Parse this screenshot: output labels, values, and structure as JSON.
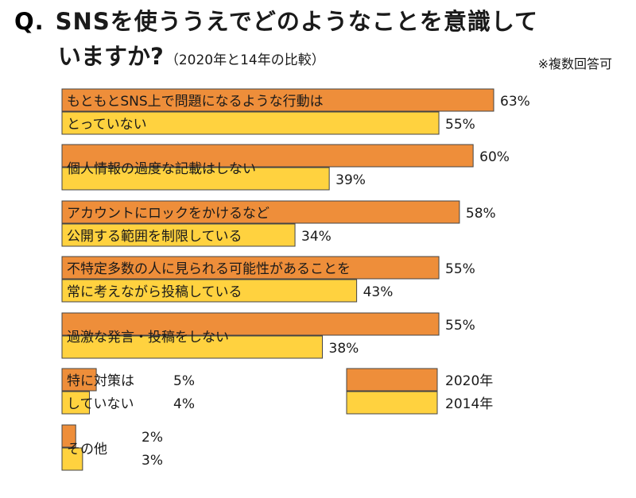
{
  "header": {
    "q_mark": "Q.",
    "title_line1": "SNSを使ううえでどのようなことを意識して",
    "title_line2": "いますか?",
    "subtitle": "（2020年と14年の比較）",
    "note": "※複数回答可"
  },
  "colors": {
    "y2020": "#EE8E3A",
    "y2014": "#FFD23F",
    "stroke": "#444444"
  },
  "chart_data": {
    "type": "bar",
    "orientation": "horizontal",
    "unit": "%",
    "categories": [
      "もともとSNS上で問題になるような行動はとっていない",
      "個人情報の過度な記載はしない",
      "アカウントにロックをかけるなど公開する範囲を制限している",
      "不特定多数の人に見られる可能性があることを常に考えながら投稿している",
      "過激な発言・投稿をしない",
      "特に対策はしていない",
      "その他"
    ],
    "label_lines": [
      [
        "もともとSNS上で問題になるような行動は",
        "とっていない"
      ],
      [
        "個人情報の過度な記載はしない"
      ],
      [
        "アカウントにロックをかけるなど",
        "公開する範囲を制限している"
      ],
      [
        "不特定多数の人に見られる可能性があることを",
        "常に考えながら投稿している"
      ],
      [
        "過激な発言・投稿をしない"
      ],
      [
        "特に対策は",
        "していない"
      ],
      [
        "その他"
      ]
    ],
    "series": [
      {
        "name": "2020年",
        "values": [
          63,
          60,
          58,
          55,
          55,
          5,
          2
        ]
      },
      {
        "name": "2014年",
        "values": [
          55,
          39,
          34,
          43,
          38,
          4,
          3
        ]
      }
    ],
    "value_labels": [
      [
        "63%",
        "60%",
        "58%",
        "55%",
        "55%",
        "5%",
        "2%"
      ],
      [
        "55%",
        "39%",
        "34%",
        "43%",
        "38%",
        "4%",
        "3%"
      ]
    ],
    "legend_position": "bottom-right",
    "grid": false
  }
}
